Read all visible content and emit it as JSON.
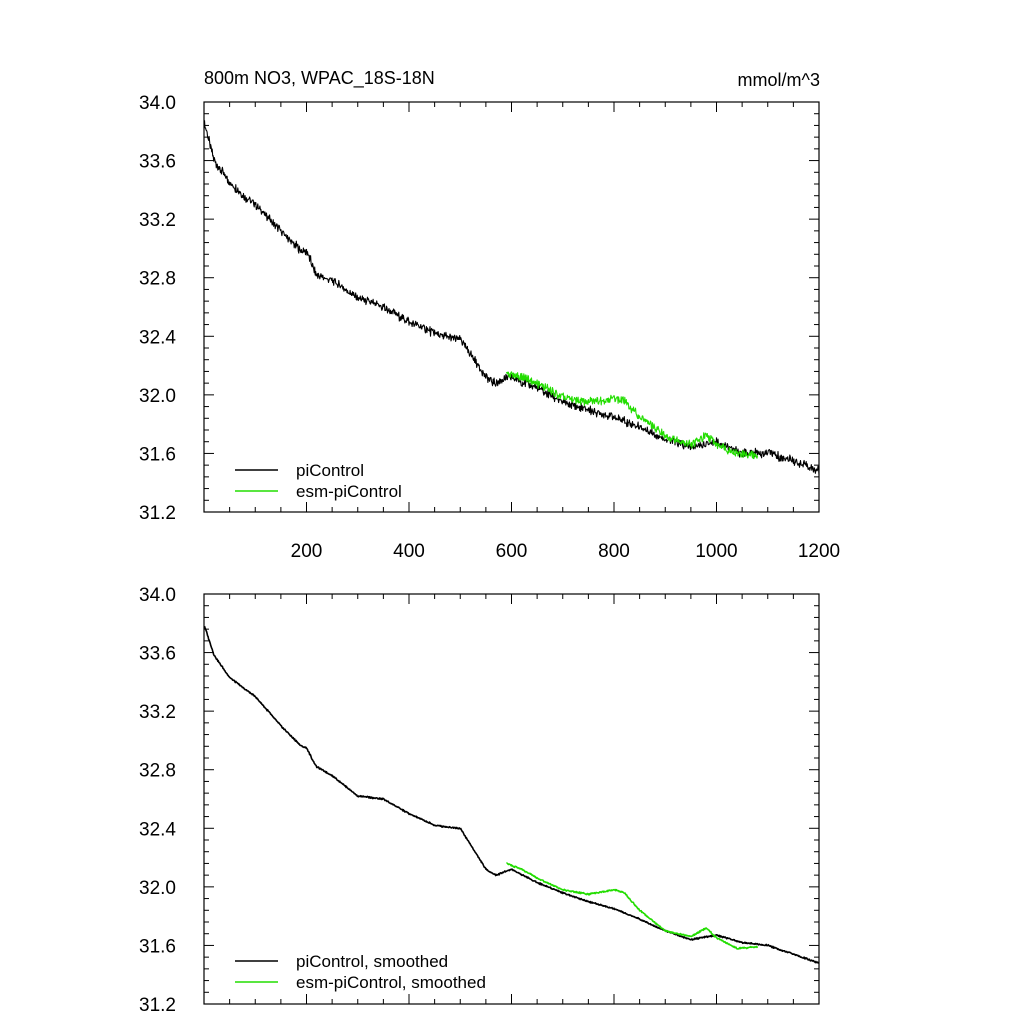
{
  "chart_data": [
    {
      "type": "line",
      "title_left": "800m NO3, WPAC_18S-18N",
      "title_right": "mmol/m^3",
      "xlim": [
        0,
        1200
      ],
      "ylim": [
        31.2,
        34.0
      ],
      "xticks": [
        200,
        400,
        600,
        800,
        1000,
        1200
      ],
      "xtick_labels": [
        "200",
        "400",
        "600",
        "800",
        "1000",
        "1200"
      ],
      "yticks": [
        31.2,
        31.6,
        32.0,
        32.4,
        32.8,
        33.2,
        33.6,
        34.0
      ],
      "ytick_labels": [
        "31.2",
        "31.6",
        "32.0",
        "32.4",
        "32.8",
        "33.2",
        "33.6",
        "34.0"
      ],
      "legend_location": "bottom-left",
      "series": [
        {
          "name": "piControl",
          "color": "#000000",
          "x": [
            1,
            20,
            50,
            80,
            100,
            150,
            190,
            200,
            210,
            220,
            250,
            300,
            350,
            400,
            450,
            500,
            550,
            570,
            600,
            650,
            700,
            750,
            800,
            850,
            900,
            950,
            1000,
            1050,
            1100,
            1150,
            1200
          ],
          "y": [
            33.85,
            33.6,
            33.45,
            33.35,
            33.3,
            33.12,
            32.98,
            32.98,
            32.9,
            32.82,
            32.78,
            32.66,
            32.6,
            32.5,
            32.42,
            32.38,
            32.12,
            32.08,
            32.12,
            32.05,
            31.95,
            31.9,
            31.85,
            31.78,
            31.7,
            31.64,
            31.68,
            31.6,
            31.6,
            31.55,
            31.48
          ]
        },
        {
          "name": "esm-piControl",
          "color": "#22dd00",
          "x": [
            590,
            620,
            650,
            700,
            750,
            800,
            820,
            850,
            900,
            950,
            980,
            1000,
            1040,
            1080
          ],
          "y": [
            32.15,
            32.12,
            32.08,
            31.98,
            31.95,
            31.98,
            31.96,
            31.85,
            31.72,
            31.66,
            31.72,
            31.66,
            31.6,
            31.58
          ]
        }
      ]
    },
    {
      "type": "line",
      "xlim": [
        0,
        1200
      ],
      "ylim": [
        31.2,
        34.0
      ],
      "xticks": [
        200,
        400,
        600,
        800,
        1000,
        1200
      ],
      "yticks": [
        31.2,
        31.6,
        32.0,
        32.4,
        32.8,
        33.2,
        33.6,
        34.0
      ],
      "ytick_labels": [
        "31.2",
        "31.6",
        "32.0",
        "32.4",
        "32.8",
        "33.2",
        "33.6",
        "34.0"
      ],
      "legend_location": "bottom-left",
      "series": [
        {
          "name": "piControl, smoothed",
          "color": "#000000",
          "x": [
            1,
            20,
            50,
            80,
            100,
            150,
            190,
            200,
            210,
            220,
            250,
            300,
            350,
            400,
            450,
            500,
            550,
            570,
            600,
            650,
            700,
            750,
            800,
            850,
            900,
            950,
            1000,
            1050,
            1100,
            1150,
            1200
          ],
          "y": [
            33.78,
            33.58,
            33.43,
            33.35,
            33.3,
            33.1,
            32.96,
            32.95,
            32.88,
            32.82,
            32.76,
            32.62,
            32.6,
            32.5,
            32.42,
            32.4,
            32.12,
            32.08,
            32.12,
            32.03,
            31.96,
            31.9,
            31.85,
            31.78,
            31.7,
            31.64,
            31.67,
            31.62,
            31.6,
            31.54,
            31.48
          ]
        },
        {
          "name": "esm-piControl, smoothed",
          "color": "#22dd00",
          "x": [
            590,
            620,
            650,
            700,
            750,
            800,
            820,
            850,
            900,
            950,
            980,
            1000,
            1040,
            1080
          ],
          "y": [
            32.16,
            32.12,
            32.06,
            31.98,
            31.95,
            31.98,
            31.96,
            31.84,
            31.7,
            31.66,
            31.72,
            31.65,
            31.58,
            31.59
          ]
        }
      ]
    }
  ]
}
